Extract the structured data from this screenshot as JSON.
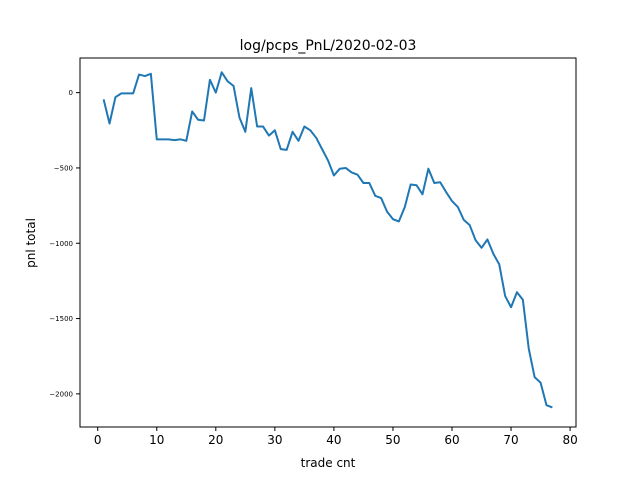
{
  "chart_data": {
    "type": "line",
    "title": "log/pcps_PnL/2020-02-03",
    "xlabel": "trade cnt",
    "ylabel": "pnl total",
    "xlim": [
      -3,
      81
    ],
    "ylim": [
      -2220,
      230
    ],
    "grid": false,
    "line_color": "#1f77b4",
    "x_ticks": [
      0,
      10,
      20,
      30,
      40,
      50,
      60,
      70,
      80
    ],
    "x_tick_labels": [
      "0",
      "10",
      "20",
      "30",
      "40",
      "50",
      "60",
      "70",
      "80"
    ],
    "y_ticks": [
      0,
      -500,
      -1000,
      -1500,
      -2000
    ],
    "y_tick_labels": [
      "0",
      "−500",
      "−1000",
      "−1500",
      "−2000"
    ],
    "series": [
      {
        "x": [
          1,
          2,
          3,
          4,
          5,
          6,
          7,
          8,
          9,
          10,
          11,
          12,
          13,
          14,
          15,
          16,
          17,
          18,
          19,
          20,
          21,
          22,
          23,
          24,
          25,
          26,
          27,
          28,
          29,
          30,
          31,
          32,
          33,
          34,
          35,
          36,
          37,
          38,
          39,
          40,
          41,
          42,
          43,
          44,
          45,
          46,
          47,
          48,
          49,
          50,
          51,
          52,
          53,
          54,
          55,
          56,
          57,
          58,
          59,
          60,
          61,
          62,
          63,
          64,
          65,
          66,
          67,
          68,
          69,
          70,
          71,
          72,
          73,
          74,
          75,
          76,
          77
        ],
        "y": [
          -45,
          -205,
          -30,
          -5,
          -5,
          -5,
          120,
          110,
          125,
          -310,
          -310,
          -310,
          -315,
          -310,
          -320,
          -125,
          -180,
          -185,
          85,
          0,
          135,
          75,
          45,
          -165,
          -260,
          30,
          -225,
          -225,
          -285,
          -250,
          -375,
          -380,
          -260,
          -320,
          -225,
          -250,
          -300,
          -375,
          -450,
          -550,
          -505,
          -500,
          -530,
          -545,
          -600,
          -600,
          -685,
          -700,
          -790,
          -840,
          -855,
          -760,
          -610,
          -615,
          -675,
          -505,
          -600,
          -595,
          -660,
          -720,
          -760,
          -845,
          -880,
          -980,
          -1030,
          -975,
          -1070,
          -1140,
          -1350,
          -1425,
          -1325,
          -1375,
          -1700,
          -1890,
          -1925,
          -2075,
          -2090
        ]
      }
    ]
  }
}
